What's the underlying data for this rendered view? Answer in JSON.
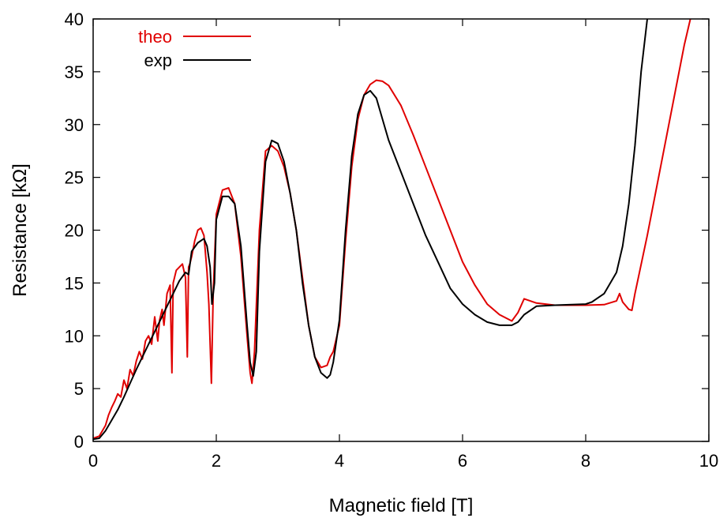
{
  "chart_data": {
    "type": "line",
    "xlabel": "Magnetic field [T]",
    "ylabel": "Resistance [kΩ]",
    "xlim": [
      0,
      10
    ],
    "ylim": [
      0,
      40
    ],
    "xticks": [
      0,
      2,
      4,
      6,
      8,
      10
    ],
    "yticks": [
      0,
      5,
      10,
      15,
      20,
      25,
      30,
      35,
      40
    ],
    "grid": false,
    "legend": "top-left",
    "series": [
      {
        "name": "theo",
        "color": "#e00000",
        "x": [
          0.0,
          0.1,
          0.2,
          0.25,
          0.3,
          0.35,
          0.4,
          0.45,
          0.5,
          0.55,
          0.6,
          0.65,
          0.7,
          0.75,
          0.8,
          0.85,
          0.9,
          0.95,
          1.0,
          1.05,
          1.08,
          1.12,
          1.15,
          1.2,
          1.25,
          1.28,
          1.3,
          1.35,
          1.4,
          1.45,
          1.5,
          1.53,
          1.55,
          1.57,
          1.6,
          1.65,
          1.7,
          1.75,
          1.8,
          1.85,
          1.88,
          1.92,
          1.95,
          2.0,
          2.1,
          2.2,
          2.3,
          2.4,
          2.5,
          2.55,
          2.58,
          2.62,
          2.7,
          2.8,
          2.9,
          3.0,
          3.1,
          3.2,
          3.3,
          3.4,
          3.5,
          3.6,
          3.7,
          3.8,
          3.85,
          3.9,
          4.0,
          4.1,
          4.2,
          4.3,
          4.4,
          4.5,
          4.6,
          4.7,
          4.8,
          5.0,
          5.2,
          5.4,
          5.6,
          5.8,
          6.0,
          6.2,
          6.4,
          6.6,
          6.8,
          6.9,
          7.0,
          7.2,
          7.5,
          8.0,
          8.3,
          8.5,
          8.55,
          8.6,
          8.7,
          8.75,
          8.8,
          9.0,
          9.2,
          9.4,
          9.6,
          9.7
        ],
        "y": [
          0.3,
          0.5,
          1.5,
          2.5,
          3.2,
          3.8,
          4.5,
          4.2,
          5.8,
          5.0,
          6.8,
          6.2,
          7.6,
          8.5,
          7.8,
          9.5,
          10.0,
          9.2,
          11.8,
          9.5,
          11.5,
          12.5,
          11.0,
          14.0,
          14.8,
          6.5,
          15.0,
          16.2,
          16.5,
          16.8,
          15.5,
          8.0,
          16.5,
          16.8,
          17.5,
          19.0,
          20.0,
          20.2,
          19.5,
          16.0,
          13.0,
          5.5,
          14.0,
          21.5,
          23.8,
          24.0,
          22.5,
          17.5,
          10.0,
          6.5,
          5.5,
          8.5,
          20.0,
          27.5,
          28.0,
          27.5,
          26.0,
          23.5,
          20.0,
          15.5,
          11.0,
          8.0,
          7.0,
          7.2,
          8.0,
          8.5,
          11.0,
          19.0,
          26.0,
          30.5,
          32.8,
          33.8,
          34.2,
          34.1,
          33.7,
          31.8,
          29.0,
          26.0,
          23.0,
          20.0,
          17.0,
          14.8,
          13.0,
          12.0,
          11.4,
          12.2,
          13.5,
          13.1,
          12.9,
          12.9,
          12.95,
          13.3,
          14.0,
          13.2,
          12.5,
          12.4,
          14.0,
          19.5,
          25.5,
          31.5,
          37.5,
          40.0
        ]
      },
      {
        "name": "exp",
        "color": "#000000",
        "x": [
          0.0,
          0.1,
          0.2,
          0.3,
          0.4,
          0.5,
          0.6,
          0.7,
          0.8,
          0.9,
          1.0,
          1.1,
          1.2,
          1.3,
          1.4,
          1.5,
          1.55,
          1.6,
          1.7,
          1.8,
          1.85,
          1.9,
          1.93,
          1.97,
          2.0,
          2.1,
          2.2,
          2.3,
          2.4,
          2.5,
          2.55,
          2.6,
          2.65,
          2.7,
          2.8,
          2.9,
          3.0,
          3.1,
          3.2,
          3.3,
          3.4,
          3.5,
          3.6,
          3.7,
          3.8,
          3.85,
          3.9,
          4.0,
          4.1,
          4.2,
          4.3,
          4.4,
          4.5,
          4.6,
          4.7,
          4.8,
          5.0,
          5.2,
          5.4,
          5.6,
          5.8,
          6.0,
          6.2,
          6.4,
          6.6,
          6.8,
          6.9,
          7.0,
          7.2,
          7.5,
          8.0,
          8.1,
          8.3,
          8.5,
          8.6,
          8.7,
          8.8,
          8.9,
          9.0
        ],
        "y": [
          0.2,
          0.3,
          1.0,
          2.0,
          3.0,
          4.2,
          5.5,
          6.8,
          8.0,
          9.2,
          10.4,
          11.6,
          12.8,
          14.0,
          15.2,
          16.0,
          15.8,
          18.0,
          18.8,
          19.2,
          18.5,
          16.5,
          13.0,
          15.0,
          21.0,
          23.2,
          23.2,
          22.5,
          18.5,
          11.0,
          7.5,
          6.2,
          8.5,
          18.0,
          26.5,
          28.5,
          28.2,
          26.5,
          23.5,
          20.0,
          15.0,
          11.0,
          8.0,
          6.5,
          6.0,
          6.3,
          7.5,
          11.5,
          20.0,
          27.0,
          31.0,
          32.8,
          33.2,
          32.5,
          30.5,
          28.5,
          25.5,
          22.5,
          19.5,
          17.0,
          14.5,
          13.0,
          12.0,
          11.3,
          11.0,
          11.0,
          11.3,
          12.0,
          12.8,
          12.9,
          13.0,
          13.2,
          14.0,
          16.0,
          18.5,
          22.5,
          28.0,
          35.0,
          40.0
        ]
      }
    ]
  }
}
